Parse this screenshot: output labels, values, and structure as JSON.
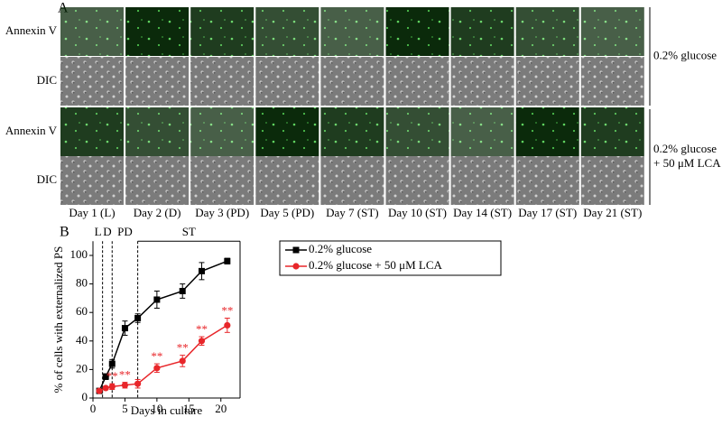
{
  "panel_a": {
    "label": "A",
    "row_labels": [
      "Annexin V",
      "DIC",
      "Annexin V",
      "DIC"
    ],
    "conditions": [
      [
        "0.2% glucose"
      ],
      [
        "0.2% glucose",
        "+ 50 μM LCA"
      ]
    ],
    "column_labels": [
      "Day 1 (L)",
      "Day 2 (D)",
      "Day 3 (PD)",
      "Day 5 (PD)",
      "Day 7 (ST)",
      "Day 10 (ST)",
      "Day 14 (ST)",
      "Day 17 (ST)",
      "Day 21 (ST)"
    ]
  },
  "chart_data": {
    "type": "line",
    "label": "B",
    "x_label": "Days in culture",
    "y_label": "% of cells with externalized PS",
    "x": [
      1,
      2,
      3,
      5,
      7,
      10,
      14,
      17,
      21
    ],
    "series": [
      {
        "name": "0.2% glucose",
        "color": "#000000",
        "marker": "square",
        "values": [
          5,
          15,
          24,
          49,
          56,
          69,
          75,
          89,
          96
        ],
        "errors": [
          1,
          2,
          3,
          5,
          3,
          6,
          5,
          6,
          2
        ]
      },
      {
        "name": "0.2% glucose + 50 μM LCA",
        "color": "#e8262a",
        "marker": "circle",
        "values": [
          5,
          7,
          8,
          9,
          10,
          21,
          26,
          40,
          51
        ],
        "errors": [
          1,
          1,
          2,
          2,
          3,
          3,
          4,
          3,
          5
        ],
        "significance": [
          null,
          null,
          "**",
          "**",
          null,
          "**",
          "**",
          "**",
          "**"
        ]
      }
    ],
    "phases": [
      "L",
      "D",
      "PD",
      "ST"
    ],
    "phase_boundaries": [
      1.5,
      3,
      7
    ],
    "xlim": [
      0,
      23
    ],
    "xticks": [
      0,
      5,
      10,
      15,
      20
    ],
    "ylim": [
      0,
      110
    ],
    "yticks": [
      0,
      20,
      40,
      60,
      80,
      100
    ]
  }
}
